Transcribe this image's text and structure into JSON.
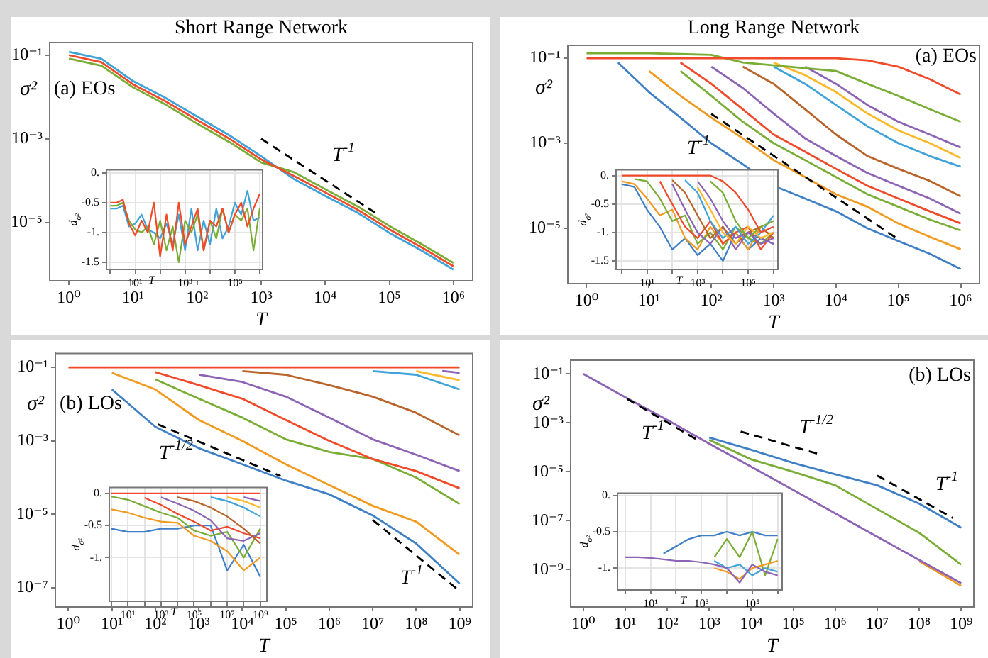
{
  "chart_data": [
    {
      "type": "line",
      "title": "Short Range Network",
      "xlabel": "T",
      "ylabel": "σ²",
      "log": "xy",
      "annotations": [
        "(a) EOs",
        "T$^{-1}$"
      ],
      "xlim": [
        0.5,
        2000000
      ],
      "ylim": [
        4e-07,
        0.2
      ],
      "xticks": [
        {
          "value": 1,
          "label": "10⁰"
        },
        {
          "value": 10,
          "label": "10¹"
        },
        {
          "value": 100,
          "label": "10²"
        },
        {
          "value": 1000,
          "label": "10³"
        },
        {
          "value": 10000,
          "label": "10⁴"
        },
        {
          "value": 100000,
          "label": "10⁵"
        },
        {
          "value": 1000000,
          "label": "10⁶"
        }
      ],
      "yticks": [
        {
          "value": 0.1,
          "label": "10⁻¹"
        },
        {
          "value": 0.001,
          "label": "10⁻³"
        },
        {
          "value": 1e-05,
          "label": "10⁻⁵"
        }
      ],
      "x": [
        1,
        3.2,
        10,
        32,
        100,
        320,
        1000,
        3200,
        10000,
        32000,
        100000,
        320000,
        1000000
      ],
      "series": [
        {
          "color": "#3fa3d9",
          "values": [
            0.12,
            0.082,
            0.024,
            0.0095,
            0.0034,
            0.0012,
            0.00038,
            0.00011,
            4.3e-05,
            1.7e-05,
            5.6e-06,
            2.1e-06,
            7.4e-07
          ]
        },
        {
          "color": "#7aad35",
          "values": [
            0.083,
            0.056,
            0.017,
            0.0066,
            0.0023,
            0.00083,
            0.00027,
            0.00016,
            6.2e-05,
            2.4e-05,
            8.2e-06,
            3e-06,
            1.07e-06
          ]
        },
        {
          "color": "#f04a2a",
          "values": [
            0.1,
            0.068,
            0.02,
            0.0079,
            0.0028,
            0.001,
            0.00032,
            0.00013,
            5.2e-05,
            2e-05,
            6.8e-06,
            2.5e-06,
            8.9e-07
          ]
        },
        {
          "type": "line",
          "color": "#000000",
          "line_style": "dashed",
          "x": [
            1000,
            60000
          ],
          "values": [
            0.001,
            1.7e-05
          ]
        }
      ]
    },
    {
      "type": "line",
      "xlabel": "T",
      "ylabel": "d$_{σ²}$",
      "log": "x",
      "grid": true,
      "xlim": [
        0.7,
        1300000
      ],
      "ylim": [
        -1.62,
        0.05
      ],
      "xticks": [
        {
          "value": 1,
          "label": null
        },
        {
          "value": 10,
          "label": "10¹"
        },
        {
          "value": 100,
          "label": null
        },
        {
          "value": 1000,
          "label": "10³"
        },
        {
          "value": 10000,
          "label": null
        },
        {
          "value": 100000,
          "label": "10⁵"
        },
        {
          "value": 1000000,
          "label": null
        }
      ],
      "yticks": [
        {
          "value": 0,
          "label": "0."
        },
        {
          "value": -0.5,
          "label": "-0.5"
        },
        {
          "value": -1,
          "label": "-1."
        },
        {
          "value": -1.5,
          "label": "-1.5"
        }
      ],
      "x": [
        1,
        1.8,
        3.2,
        5.6,
        10,
        18,
        32,
        56,
        100,
        180,
        320,
        560,
        1000,
        1800,
        3200,
        5600,
        10000,
        18000,
        32000,
        56000,
        100000,
        180000,
        320000,
        560000,
        1000000
      ],
      "series": [
        {
          "color": "#3fa3d9",
          "values": [
            -0.6,
            -0.6,
            -0.55,
            -0.9,
            -0.85,
            -0.7,
            -0.95,
            -1.0,
            -1.1,
            -0.85,
            -1.2,
            -0.7,
            -1.3,
            -0.6,
            -1.3,
            -0.8,
            -1.2,
            -0.6,
            -1.1,
            -0.9,
            -0.5,
            -0.7,
            -0.3,
            -0.8,
            -0.75
          ]
        },
        {
          "color": "#7aad35",
          "values": [
            -0.55,
            -0.55,
            -0.5,
            -0.8,
            -0.95,
            -1.0,
            -0.9,
            -1.2,
            -0.8,
            -1.3,
            -0.9,
            -1.5,
            -0.8,
            -1.0,
            -0.7,
            -1.3,
            -0.8,
            -1.1,
            -0.6,
            -1.0,
            -0.7,
            -0.8,
            -0.6,
            -1.3,
            -0.6
          ]
        },
        {
          "color": "#f04a2a",
          "values": [
            -0.5,
            -0.5,
            -0.45,
            -0.85,
            -1.05,
            -0.8,
            -1.0,
            -0.5,
            -1.4,
            -0.7,
            -1.3,
            -0.5,
            -1.2,
            -0.9,
            -0.6,
            -1.3,
            -0.8,
            -0.9,
            -0.6,
            -1.0,
            -0.7,
            -0.5,
            -0.9,
            -0.6,
            -0.35
          ]
        }
      ]
    },
    {
      "type": "line",
      "title": "Long Range Network",
      "xlabel": "T",
      "ylabel": "σ²",
      "log": "xy",
      "annotations": [
        "(a) EOs",
        "T$^{-1}$"
      ],
      "xlim": [
        0.5,
        2000000
      ],
      "ylim": [
        5e-07,
        0.2
      ],
      "xticks": [
        {
          "value": 1,
          "label": "10⁰"
        },
        {
          "value": 10,
          "label": "10¹"
        },
        {
          "value": 100,
          "label": "10²"
        },
        {
          "value": 1000,
          "label": "10³"
        },
        {
          "value": 10000,
          "label": "10⁴"
        },
        {
          "value": 100000,
          "label": "10⁵"
        },
        {
          "value": 1000000,
          "label": "10⁶"
        }
      ],
      "yticks": [
        {
          "value": 0.1,
          "label": "10⁻¹"
        },
        {
          "value": 0.001,
          "label": "10⁻³"
        },
        {
          "value": 1e-05,
          "label": "10⁻⁵"
        }
      ],
      "x": [
        1,
        3.2,
        10,
        32,
        100,
        320,
        1000,
        3200,
        10000,
        32000,
        100000,
        320000,
        1000000
      ],
      "series": [
        {
          "color": "#3f7fc6",
          "values": [
            null,
            0.079,
            0.016,
            0.004,
            0.001,
            0.00032,
            0.0001,
            5e-05,
            2.5e-05,
            1e-05,
            5e-06,
            2.5e-06,
            1.1e-06
          ]
        },
        {
          "color": "#f29a1f",
          "values": [
            null,
            null,
            0.05,
            0.013,
            0.004,
            0.0013,
            0.0004,
            0.00016,
            6.3e-05,
            3.2e-05,
            1.3e-05,
            6.3e-06,
            3.2e-06
          ]
        },
        {
          "color": "#7aad35",
          "values": [
            null,
            null,
            null,
            0.05,
            0.013,
            0.0032,
            0.001,
            0.0004,
            0.00016,
            6.3e-05,
            3.2e-05,
            1.6e-05,
            8.9e-06
          ]
        },
        {
          "color": "#f04a2a",
          "values": [
            null,
            null,
            null,
            0.079,
            0.025,
            0.0063,
            0.0016,
            0.00063,
            0.00025,
            0.0001,
            5e-05,
            2.5e-05,
            1.3e-05
          ]
        },
        {
          "color": "#8c63b5",
          "values": [
            null,
            null,
            null,
            null,
            0.063,
            0.02,
            0.005,
            0.0013,
            0.0005,
            0.0002,
            0.0001,
            5e-05,
            2.2e-05
          ]
        },
        {
          "color": "#b8642a",
          "values": [
            null,
            null,
            null,
            null,
            null,
            0.063,
            0.025,
            0.0063,
            0.0016,
            0.0005,
            0.00025,
            0.00013,
            5.6e-05
          ]
        },
        {
          "color": "#3fa3d9",
          "values": [
            null,
            null,
            null,
            null,
            null,
            null,
            0.063,
            0.025,
            0.0079,
            0.0025,
            0.001,
            0.0005,
            0.00028
          ]
        },
        {
          "color": "#fbb829",
          "values": [
            null,
            null,
            null,
            null,
            null,
            null,
            0.079,
            0.04,
            0.016,
            0.005,
            0.002,
            0.001,
            0.00045
          ]
        },
        {
          "color": "#8c63b5",
          "values": [
            null,
            null,
            null,
            null,
            null,
            null,
            null,
            0.063,
            0.025,
            0.0079,
            0.0032,
            0.0016,
            0.00079
          ]
        },
        {
          "color": "#7aad35",
          "values": [
            0.13,
            0.13,
            0.13,
            0.125,
            0.12,
            0.079,
            null,
            null,
            0.05,
            0.025,
            0.013,
            0.0063,
            0.0032
          ]
        },
        {
          "color": "#f04a2a",
          "values": [
            0.1,
            0.1,
            0.1,
            0.1,
            0.1,
            0.1,
            0.1,
            0.1,
            0.1,
            0.089,
            0.063,
            0.032,
            0.014
          ]
        },
        {
          "type": "line",
          "color": "#000000",
          "line_style": "dashed",
          "x": [
            100,
            100000
          ],
          "values": [
            0.0049,
            5.5e-06
          ]
        }
      ]
    },
    {
      "type": "line",
      "xlabel": "T",
      "ylabel": "d$_{σ²}$",
      "log": "x",
      "grid": true,
      "xlim": [
        0.6,
        1500000
      ],
      "ylim": [
        -1.65,
        0.1
      ],
      "xticks": [
        {
          "value": 1,
          "label": null
        },
        {
          "value": 10,
          "label": "10¹"
        },
        {
          "value": 100,
          "label": null
        },
        {
          "value": 1000,
          "label": "10³"
        },
        {
          "value": 10000,
          "label": null
        },
        {
          "value": 100000,
          "label": "10⁵"
        },
        {
          "value": 1000000,
          "label": null
        }
      ],
      "yticks": [
        {
          "value": 0,
          "label": "0."
        },
        {
          "value": -0.5,
          "label": "-0.5"
        },
        {
          "value": -1,
          "label": "-1."
        },
        {
          "value": -1.5,
          "label": "-1.5"
        }
      ],
      "x": [
        1,
        3.2,
        10,
        32,
        100,
        320,
        1000,
        3200,
        10000,
        32000,
        100000,
        320000,
        1000000
      ],
      "series": [
        {
          "color": "#3f7fc6",
          "values": [
            -0.15,
            -0.2,
            -0.6,
            -0.9,
            -1.3,
            -1.1,
            -1.4,
            -1.2,
            -1.5,
            -1.0,
            -1.3,
            -1.1,
            -1.2
          ]
        },
        {
          "color": "#f29a1f",
          "values": [
            -0.1,
            -0.15,
            -0.4,
            -0.7,
            -0.6,
            -1.1,
            -1.3,
            -0.9,
            -1.2,
            -1.0,
            -1.3,
            -0.9,
            -1.1
          ]
        },
        {
          "color": "#7aad35",
          "values": [
            null,
            -0.06,
            -0.1,
            -0.4,
            -0.8,
            -0.7,
            -1.2,
            -1.0,
            -1.3,
            -0.9,
            -1.1,
            -1.2,
            -1.0
          ]
        },
        {
          "color": "#f04a2a",
          "values": [
            null,
            null,
            null,
            -0.1,
            -0.5,
            -0.9,
            -1.1,
            -0.8,
            -1.2,
            -1.0,
            -0.9,
            -1.3,
            -1.0
          ]
        },
        {
          "color": "#8c63b5",
          "values": [
            null,
            null,
            null,
            null,
            -0.15,
            -0.6,
            -1.0,
            -1.2,
            -0.9,
            -1.3,
            -1.0,
            -1.1,
            -1.2
          ]
        },
        {
          "color": "#b8642a",
          "values": [
            null,
            null,
            null,
            null,
            -0.08,
            -0.3,
            -0.7,
            -1.1,
            -0.9,
            -1.2,
            -1.0,
            -0.9,
            -1.1
          ]
        },
        {
          "color": "#3fa3d9",
          "values": [
            null,
            null,
            null,
            null,
            null,
            -0.08,
            -0.3,
            -0.8,
            -1.1,
            -0.9,
            -1.2,
            -1.0,
            -0.7
          ]
        },
        {
          "color": "#fbb829",
          "values": [
            null,
            null,
            null,
            null,
            null,
            null,
            -0.2,
            -0.6,
            -1.0,
            -1.2,
            -0.9,
            -1.1,
            -1.0
          ]
        },
        {
          "color": "#8c63b5",
          "values": [
            null,
            null,
            null,
            null,
            null,
            null,
            -0.1,
            -0.4,
            -0.8,
            -1.1,
            -1.0,
            -1.2,
            -1.1
          ]
        },
        {
          "color": "#7aad35",
          "values": [
            null,
            null,
            null,
            null,
            null,
            null,
            null,
            -0.1,
            -0.3,
            -0.8,
            -1.1,
            -0.9,
            -0.8
          ]
        },
        {
          "color": "#f04a2a",
          "values": [
            0,
            0,
            0,
            0,
            0,
            0,
            0,
            0,
            -0.1,
            -0.3,
            -0.6,
            -1.0,
            -0.9
          ]
        }
      ]
    },
    {
      "type": "line",
      "xlabel": "T",
      "ylabel": "σ²",
      "log": "xy",
      "annotations": [
        "(b) LOs",
        "T$^{-1/2}$",
        "T$^{-1}$"
      ],
      "xlim": [
        0.5,
        2000000000
      ],
      "ylim": [
        3e-08,
        0.24
      ],
      "xticks": [
        {
          "value": 1,
          "label": "10⁰"
        },
        {
          "value": 10,
          "label": "10¹"
        },
        {
          "value": 100,
          "label": "10²"
        },
        {
          "value": 1000,
          "label": "10³"
        },
        {
          "value": 10000,
          "label": "10⁴"
        },
        {
          "value": 100000,
          "label": "10⁵"
        },
        {
          "value": 1000000,
          "label": "10⁶"
        },
        {
          "value": 10000000,
          "label": "10⁷"
        },
        {
          "value": 100000000,
          "label": "10⁸"
        },
        {
          "value": 1000000000,
          "label": "10⁹"
        }
      ],
      "yticks": [
        {
          "value": 0.1,
          "label": "10⁻¹"
        },
        {
          "value": 0.001,
          "label": "10⁻³"
        },
        {
          "value": 1e-05,
          "label": "10⁻⁵"
        },
        {
          "value": 1e-07,
          "label": "10⁻⁷"
        }
      ],
      "x": [
        1,
        10,
        100,
        1000,
        10000,
        100000,
        1000000,
        10000000,
        100000000,
        1000000000
      ],
      "series": [
        {
          "color": "#3f7fc6",
          "values": [
            null,
            0.025,
            0.0024,
            0.00063,
            0.00023,
            8.3e-05,
            3.5e-05,
            9.3e-06,
            1.6e-06,
            1.3e-07
          ]
        },
        {
          "color": "#f29a1f",
          "values": [
            null,
            0.071,
            0.025,
            0.0037,
            0.001,
            0.00023,
            6.3e-05,
            1.7e-05,
            6.3e-06,
            7.9e-07
          ]
        },
        {
          "color": "#7aad35",
          "values": [
            null,
            null,
            0.047,
            0.014,
            0.0043,
            0.0011,
            0.0005,
            0.00032,
            0.0001,
            1.9e-05
          ]
        },
        {
          "color": "#f04a2a",
          "values": [
            null,
            null,
            0.074,
            0.033,
            0.014,
            0.0037,
            0.001,
            0.00032,
            0.00015,
            5.1e-05
          ]
        },
        {
          "color": "#8c63b5",
          "values": [
            null,
            null,
            null,
            0.063,
            0.04,
            0.016,
            0.0043,
            0.0011,
            0.00042,
            0.00015
          ]
        },
        {
          "color": "#b8642a",
          "values": [
            null,
            null,
            null,
            null,
            0.079,
            0.063,
            0.033,
            0.016,
            0.0058,
            0.0014
          ]
        },
        {
          "color": "#3fa3d9",
          "values": [
            null,
            null,
            null,
            null,
            null,
            null,
            null,
            0.079,
            0.063,
            0.025
          ]
        },
        {
          "color": "#fbb829",
          "values": [
            null,
            null,
            null,
            null,
            null,
            null,
            null,
            null,
            0.079,
            0.045
          ]
        },
        {
          "color": "#8c63b5",
          "x": [
            400000000,
            1000000000
          ],
          "values": [
            0.08,
            0.071
          ]
        },
        {
          "color": "#f04a2a",
          "values": [
            0.1,
            0.1,
            0.1,
            0.1,
            0.1,
            0.1,
            0.1,
            0.1,
            0.1,
            0.1
          ]
        },
        {
          "type": "line",
          "color": "#000000",
          "line_style": "dashed",
          "x": [
            115,
            76000
          ],
          "values": [
            0.0028,
            0.00011
          ]
        },
        {
          "type": "line",
          "color": "#000000",
          "line_style": "dashed",
          "x": [
            10000000,
            900000000
          ],
          "values": [
            7e-06,
            9e-08
          ]
        }
      ]
    },
    {
      "type": "line",
      "xlabel": "T",
      "ylabel": "d$_{σ²}$",
      "log": "x",
      "grid": true,
      "xlim": [
        0.75,
        2500000000
      ],
      "ylim": [
        -1.68,
        0.09
      ],
      "xticks": [
        {
          "value": 1,
          "label": null
        },
        {
          "value": 10,
          "label": "10¹"
        },
        {
          "value": 100,
          "label": null
        },
        {
          "value": 1000,
          "label": "10³"
        },
        {
          "value": 10000,
          "label": null
        },
        {
          "value": 100000,
          "label": "10⁵"
        },
        {
          "value": 1000000,
          "label": null
        },
        {
          "value": 10000000,
          "label": "10⁷"
        },
        {
          "value": 100000000,
          "label": null
        },
        {
          "value": 1000000000,
          "label": "10⁹"
        }
      ],
      "yticks": [
        {
          "value": 0,
          "label": "0."
        },
        {
          "value": -0.5,
          "label": "-0.5"
        },
        {
          "value": -1,
          "label": "-1."
        }
      ],
      "x": [
        1,
        10,
        100,
        1000,
        10000,
        100000,
        1000000,
        10000000,
        100000000,
        1000000000
      ],
      "series": [
        {
          "color": "#3f7fc6",
          "values": [
            -0.55,
            -0.6,
            -0.6,
            -0.55,
            -0.55,
            -0.5,
            -0.5,
            -1.2,
            -0.8,
            -1.3
          ]
        },
        {
          "color": "#f29a1f",
          "values": [
            -0.25,
            -0.3,
            -0.38,
            -0.44,
            -0.46,
            -0.66,
            -0.74,
            -0.9,
            -1.2,
            -1.0
          ]
        },
        {
          "color": "#7aad35",
          "values": [
            -0.05,
            -0.1,
            -0.2,
            -0.3,
            -0.38,
            -0.58,
            -0.66,
            -0.6,
            -1.0,
            -0.55
          ]
        },
        {
          "color": "#f04a2a",
          "values": [
            null,
            null,
            -0.07,
            -0.18,
            -0.32,
            -0.44,
            -0.58,
            -0.52,
            -0.62,
            -0.7
          ]
        },
        {
          "color": "#8c63b5",
          "values": [
            null,
            null,
            null,
            -0.06,
            -0.16,
            -0.27,
            -0.42,
            -0.7,
            -0.74,
            -0.62
          ]
        },
        {
          "color": "#b8642a",
          "values": [
            null,
            null,
            null,
            null,
            -0.06,
            -0.12,
            -0.22,
            -0.36,
            -0.55,
            -0.78
          ]
        },
        {
          "color": "#3fa3d9",
          "values": [
            null,
            null,
            null,
            null,
            null,
            null,
            -0.06,
            -0.12,
            -0.22,
            -0.36
          ]
        },
        {
          "color": "#fbb829",
          "values": [
            null,
            null,
            null,
            null,
            null,
            null,
            null,
            -0.06,
            -0.12,
            -0.22
          ]
        },
        {
          "color": "#8c63b5",
          "values": [
            null,
            null,
            null,
            null,
            null,
            null,
            null,
            null,
            -0.06,
            -0.12
          ]
        },
        {
          "color": "#f04a2a",
          "values": [
            0,
            0,
            0,
            0,
            0,
            0,
            0,
            0,
            0,
            0
          ]
        }
      ]
    },
    {
      "type": "line",
      "xlabel": "T",
      "ylabel": "σ²",
      "log": "xy",
      "annotations": [
        "(b) LOs",
        "T$^{-1}$",
        "T$^{-1/2}$",
        "T$^{-1}$"
      ],
      "xlim": [
        0.5,
        2000000000
      ],
      "ylim": [
        3e-11,
        0.36
      ],
      "xticks": [
        {
          "value": 1,
          "label": "10⁰"
        },
        {
          "value": 10,
          "label": "10¹"
        },
        {
          "value": 100,
          "label": "10²"
        },
        {
          "value": 1000,
          "label": "10³"
        },
        {
          "value": 10000,
          "label": "10⁴"
        },
        {
          "value": 100000,
          "label": "10⁵"
        },
        {
          "value": 1000000,
          "label": "10⁶"
        },
        {
          "value": 10000000,
          "label": "10⁷"
        },
        {
          "value": 100000000,
          "label": "10⁸"
        },
        {
          "value": 1000000000,
          "label": "10⁹"
        }
      ],
      "yticks": [
        {
          "value": 0.1,
          "label": "10⁻¹"
        },
        {
          "value": 0.001,
          "label": "10⁻³"
        },
        {
          "value": 1e-05,
          "label": "10⁻⁵"
        },
        {
          "value": 1e-07,
          "label": "10⁻⁷"
        },
        {
          "value": 1e-09,
          "label": "10⁻⁹"
        }
      ],
      "x": [
        1,
        10,
        100,
        1000,
        10000,
        100000,
        1000000,
        10000000,
        100000000,
        1000000000
      ],
      "series": [
        {
          "color": "#3f7fc6",
          "values": [
            null,
            null,
            null,
            0.00025,
            7.9e-05,
            2.3e-05,
            7.9e-06,
            2.8e-06,
            5e-07,
            5.2e-08
          ]
        },
        {
          "color": "#7aad35",
          "values": [
            null,
            null,
            null,
            0.0002,
            3.2e-05,
            1e-05,
            2.8e-06,
            3e-07,
            3.2e-08,
            1.6e-09
          ]
        },
        {
          "color": "#f29a1f",
          "values": [
            null,
            null,
            null,
            null,
            null,
            null,
            null,
            null,
            2.2e-09,
            2.2e-10
          ]
        },
        {
          "color": "#8c63b5",
          "values": [
            0.1,
            0.011,
            0.0013,
            0.00014,
            1.6e-05,
            1.8e-06,
            2e-07,
            2.2e-08,
            2.5e-09,
            2.8e-10
          ]
        },
        {
          "type": "line",
          "color": "#000000",
          "line_style": "dashed",
          "x": [
            11,
            520
          ],
          "values": [
            0.0095,
            0.0002
          ]
        },
        {
          "type": "line",
          "color": "#000000",
          "line_style": "dashed",
          "x": [
            5600,
            450000
          ],
          "values": [
            0.00044,
            5e-05
          ]
        },
        {
          "type": "line",
          "color": "#000000",
          "line_style": "dashed",
          "x": [
            10000000,
            630000000
          ],
          "values": [
            7e-06,
            1.3e-07
          ]
        }
      ]
    },
    {
      "type": "line",
      "xlabel": "T",
      "ylabel": "d$_{σ²}$",
      "log": "x",
      "grid": true,
      "xlim": [
        0.5,
        1500000
      ],
      "ylim": [
        -1.3,
        0.03
      ],
      "xticks": [
        {
          "value": 1,
          "label": null
        },
        {
          "value": 10,
          "label": "10¹"
        },
        {
          "value": 100,
          "label": null
        },
        {
          "value": 1000,
          "label": "10³"
        },
        {
          "value": 10000,
          "label": null
        },
        {
          "value": 100000,
          "label": "10⁵"
        },
        {
          "value": 1000000,
          "label": null
        }
      ],
      "yticks": [
        {
          "value": 0,
          "label": "0."
        },
        {
          "value": -0.5,
          "label": "-0.5"
        },
        {
          "value": -1,
          "label": "-1."
        }
      ],
      "x": [
        1,
        3.2,
        10,
        32,
        100,
        320,
        1000,
        3200,
        10000,
        32000,
        100000,
        320000,
        1000000
      ],
      "series": [
        {
          "color": "#3f7fc6",
          "values": [
            null,
            null,
            null,
            -0.8,
            -0.7,
            -0.6,
            -0.55,
            -0.55,
            -0.5,
            -0.55,
            -0.5,
            -0.55,
            -0.55
          ]
        },
        {
          "color": "#7aad35",
          "values": [
            null,
            null,
            null,
            null,
            null,
            null,
            null,
            -0.85,
            -0.6,
            -0.85,
            -0.5,
            -1.1,
            -0.6
          ]
        },
        {
          "color": "#f29a1f",
          "values": [
            null,
            null,
            null,
            null,
            null,
            null,
            null,
            -1.0,
            -1.05,
            -1.15,
            -1.0,
            -0.95,
            -0.9
          ]
        },
        {
          "color": "#3fa3d9",
          "values": [
            null,
            null,
            null,
            null,
            null,
            null,
            null,
            -0.9,
            -1.0,
            -0.95,
            -1.1,
            -1.0,
            -1.05
          ]
        },
        {
          "color": "#8c63b5",
          "values": [
            -0.85,
            -0.85,
            -0.86,
            -0.88,
            -0.9,
            -0.9,
            -0.92,
            -0.95,
            -1.0,
            -1.2,
            -0.95,
            -1.05,
            -1.1
          ]
        }
      ]
    }
  ]
}
